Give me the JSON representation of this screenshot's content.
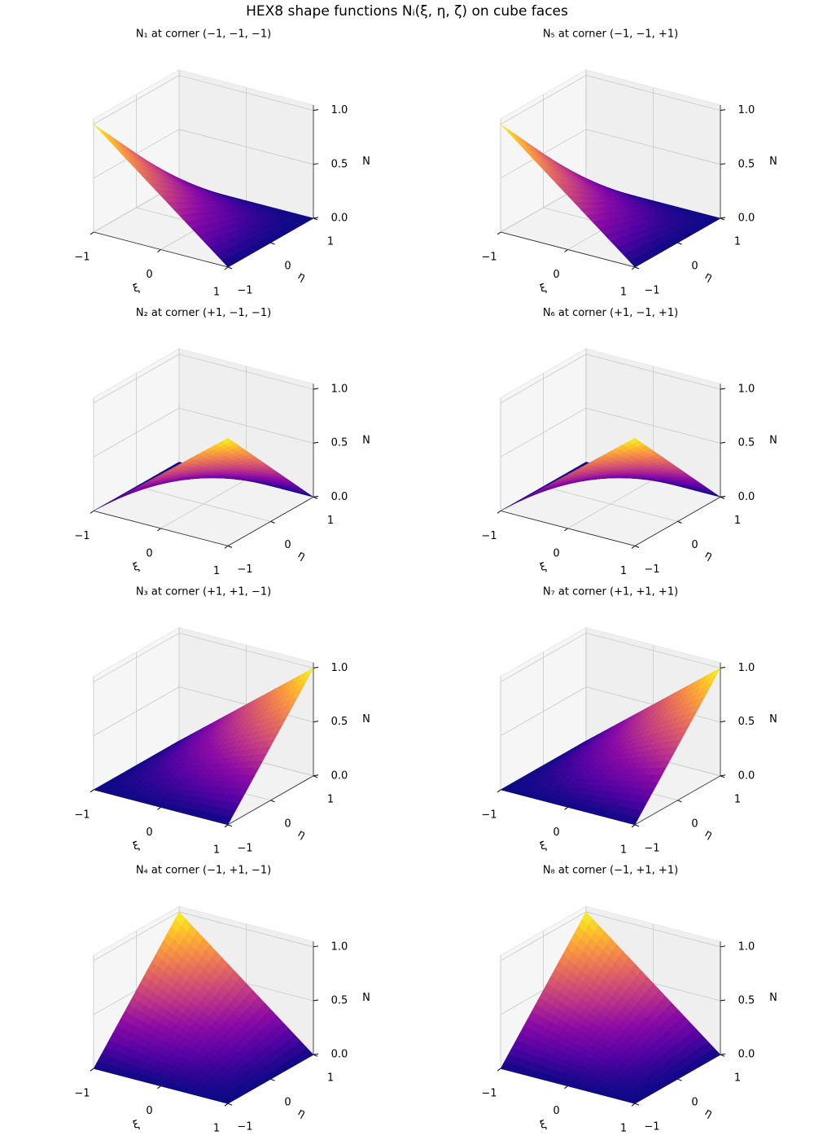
{
  "title": "HEX8 shape functions Nᵢ(ξ, η, ζ) on cube faces",
  "chart_data": [
    {
      "type": "surface",
      "title": "N₁ at corner (−1, −1, −1)",
      "xlabel": "ξ",
      "ylabel": "η",
      "zlabel": "N",
      "cmap": "plasma",
      "grid": true,
      "x": [
        -1,
        1
      ],
      "y": [
        -1,
        1
      ],
      "z": [
        [
          1,
          0
        ],
        [
          0,
          0
        ]
      ],
      "xlim": [
        -1,
        1
      ],
      "ylim": [
        -1,
        1
      ],
      "zlim": [
        0,
        1.05
      ],
      "xticks": [
        {
          "value": -1,
          "label": "−1"
        },
        0,
        1
      ],
      "yticks": [
        {
          "value": -1,
          "label": "−1"
        },
        0,
        1
      ],
      "zticks": [
        {
          "value": 0,
          "label": "0.0"
        },
        0.5,
        {
          "value": 1,
          "label": "1.0"
        }
      ]
    },
    {
      "type": "surface",
      "title": "N₂ at corner (+1, −1, −1)",
      "xlabel": "ξ",
      "ylabel": "η",
      "zlabel": "N",
      "cmap": "plasma",
      "grid": true,
      "x": [
        -1,
        1
      ],
      "y": [
        -1,
        1
      ],
      "z": [
        [
          0,
          1
        ],
        [
          0,
          0
        ]
      ],
      "xlim": [
        -1,
        1
      ],
      "ylim": [
        -1,
        1
      ],
      "zlim": [
        0,
        1.05
      ],
      "xticks": [
        {
          "value": -1,
          "label": "−1"
        },
        0,
        1
      ],
      "yticks": [
        {
          "value": -1,
          "label": "−1"
        },
        0,
        1
      ],
      "zticks": [
        {
          "value": 0,
          "label": "0.0"
        },
        0.5,
        {
          "value": 1,
          "label": "1.0"
        }
      ]
    },
    {
      "type": "surface",
      "title": "N₃ at corner (+1, +1, −1)",
      "xlabel": "ξ",
      "ylabel": "η",
      "zlabel": "N",
      "cmap": "plasma",
      "grid": true,
      "x": [
        -1,
        1
      ],
      "y": [
        -1,
        1
      ],
      "z": [
        [
          0,
          0
        ],
        [
          0,
          1
        ]
      ],
      "xlim": [
        -1,
        1
      ],
      "ylim": [
        -1,
        1
      ],
      "zlim": [
        0,
        1.05
      ],
      "xticks": [
        {
          "value": -1,
          "label": "−1"
        },
        0,
        1
      ],
      "yticks": [
        {
          "value": -1,
          "label": "−1"
        },
        0,
        1
      ],
      "zticks": [
        {
          "value": 0,
          "label": "0.0"
        },
        0.5,
        {
          "value": 1,
          "label": "1.0"
        }
      ]
    },
    {
      "type": "surface",
      "title": "N₄ at corner (−1, +1, −1)",
      "xlabel": "ξ",
      "ylabel": "η",
      "zlabel": "N",
      "cmap": "plasma",
      "grid": true,
      "x": [
        -1,
        1
      ],
      "y": [
        -1,
        1
      ],
      "z": [
        [
          0,
          0
        ],
        [
          1,
          0
        ]
      ],
      "xlim": [
        -1,
        1
      ],
      "ylim": [
        -1,
        1
      ],
      "zlim": [
        0,
        1.05
      ],
      "xticks": [
        {
          "value": -1,
          "label": "−1"
        },
        0,
        1
      ],
      "yticks": [
        {
          "value": -1,
          "label": "−1"
        },
        0,
        1
      ],
      "zticks": [
        {
          "value": 0,
          "label": "0.0"
        },
        0.5,
        {
          "value": 1,
          "label": "1.0"
        }
      ]
    },
    {
      "type": "surface",
      "title": "N₅ at corner (−1, −1, +1)",
      "xlabel": "ξ",
      "ylabel": "η",
      "zlabel": "N",
      "cmap": "plasma",
      "grid": true,
      "x": [
        -1,
        1
      ],
      "y": [
        -1,
        1
      ],
      "z": [
        [
          1,
          0
        ],
        [
          0,
          0
        ]
      ],
      "xlim": [
        -1,
        1
      ],
      "ylim": [
        -1,
        1
      ],
      "zlim": [
        0,
        1.05
      ],
      "xticks": [
        {
          "value": -1,
          "label": "−1"
        },
        0,
        1
      ],
      "yticks": [
        {
          "value": -1,
          "label": "−1"
        },
        0,
        1
      ],
      "zticks": [
        {
          "value": 0,
          "label": "0.0"
        },
        0.5,
        {
          "value": 1,
          "label": "1.0"
        }
      ]
    },
    {
      "type": "surface",
      "title": "N₆ at corner (+1, −1, +1)",
      "xlabel": "ξ",
      "ylabel": "η",
      "zlabel": "N",
      "cmap": "plasma",
      "grid": true,
      "x": [
        -1,
        1
      ],
      "y": [
        -1,
        1
      ],
      "z": [
        [
          0,
          1
        ],
        [
          0,
          0
        ]
      ],
      "xlim": [
        -1,
        1
      ],
      "ylim": [
        -1,
        1
      ],
      "zlim": [
        0,
        1.05
      ],
      "xticks": [
        {
          "value": -1,
          "label": "−1"
        },
        0,
        1
      ],
      "yticks": [
        {
          "value": -1,
          "label": "−1"
        },
        0,
        1
      ],
      "zticks": [
        {
          "value": 0,
          "label": "0.0"
        },
        0.5,
        {
          "value": 1,
          "label": "1.0"
        }
      ]
    },
    {
      "type": "surface",
      "title": "N₇ at corner (+1, +1, +1)",
      "xlabel": "ξ",
      "ylabel": "η",
      "zlabel": "N",
      "cmap": "plasma",
      "grid": true,
      "x": [
        -1,
        1
      ],
      "y": [
        -1,
        1
      ],
      "z": [
        [
          0,
          0
        ],
        [
          0,
          1
        ]
      ],
      "xlim": [
        -1,
        1
      ],
      "ylim": [
        -1,
        1
      ],
      "zlim": [
        0,
        1.05
      ],
      "xticks": [
        {
          "value": -1,
          "label": "−1"
        },
        0,
        1
      ],
      "yticks": [
        {
          "value": -1,
          "label": "−1"
        },
        0,
        1
      ],
      "zticks": [
        {
          "value": 0,
          "label": "0.0"
        },
        0.5,
        {
          "value": 1,
          "label": "1.0"
        }
      ]
    },
    {
      "type": "surface",
      "title": "N₈ at corner (−1, +1, +1)",
      "xlabel": "ξ",
      "ylabel": "η",
      "zlabel": "N",
      "cmap": "plasma",
      "grid": true,
      "x": [
        -1,
        1
      ],
      "y": [
        -1,
        1
      ],
      "z": [
        [
          0,
          0
        ],
        [
          1,
          0
        ]
      ],
      "xlim": [
        -1,
        1
      ],
      "ylim": [
        -1,
        1
      ],
      "zlim": [
        0,
        1.05
      ],
      "xticks": [
        {
          "value": -1,
          "label": "−1"
        },
        0,
        1
      ],
      "yticks": [
        {
          "value": -1,
          "label": "−1"
        },
        0,
        1
      ],
      "zticks": [
        {
          "value": 0,
          "label": "0.0"
        },
        0.5,
        {
          "value": 1,
          "label": "1.0"
        }
      ]
    }
  ]
}
